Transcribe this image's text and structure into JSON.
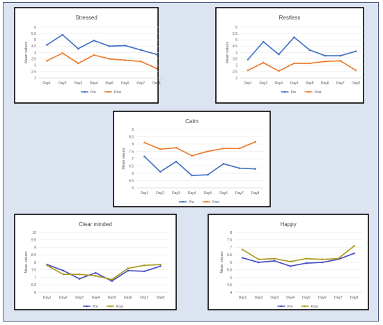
{
  "chart_data": [
    {
      "type": "line",
      "title": "Stressed",
      "xlabel": "",
      "ylabel": "Mean values",
      "categories": [
        "Day1",
        "Day2",
        "Day3",
        "Day4",
        "Day5",
        "Day6",
        "Day7",
        "Day8"
      ],
      "ylim": [
        2,
        6
      ],
      "yticks": [
        "2",
        "2.5",
        "3",
        "3.5",
        "4",
        "4.5",
        "5",
        "5.5",
        "6"
      ],
      "grid": true,
      "legend": "bottom",
      "series": [
        {
          "name": "Pre",
          "color": "#4472c4",
          "values": [
            4.6,
            5.4,
            4.3,
            4.95,
            4.5,
            4.55,
            4.2,
            3.85
          ]
        },
        {
          "name": "Post",
          "color": "#ed7d31",
          "values": [
            3.35,
            3.95,
            3.15,
            3.8,
            3.5,
            3.4,
            3.3,
            2.75
          ]
        }
      ]
    },
    {
      "type": "line",
      "title": "Restless",
      "xlabel": "",
      "ylabel": "Mean values",
      "categories": [
        "Day1",
        "Day2",
        "Day3",
        "Day4",
        "Day5",
        "Day6",
        "Day7",
        "Day8"
      ],
      "ylim": [
        2,
        6
      ],
      "yticks": [
        "2",
        "2.5",
        "3",
        "3.5",
        "4",
        "4.5",
        "5",
        "5.5",
        "6"
      ],
      "grid": true,
      "legend": "bottom",
      "series": [
        {
          "name": "Pre",
          "color": "#4472c4",
          "values": [
            3.45,
            4.85,
            3.85,
            5.2,
            4.2,
            3.75,
            3.75,
            4.1
          ]
        },
        {
          "name": "Post",
          "color": "#ed7d31",
          "values": [
            2.6,
            3.2,
            2.55,
            3.15,
            3.15,
            3.3,
            3.35,
            2.6
          ]
        }
      ]
    },
    {
      "type": "line",
      "title": "Calm",
      "xlabel": "",
      "ylabel": "Mean values",
      "categories": [
        "Day1",
        "Day2",
        "Day3",
        "Day4",
        "Day5",
        "Day6",
        "Day7",
        "Day8"
      ],
      "ylim": [
        5,
        9
      ],
      "yticks": [
        "5",
        "5.5",
        "6",
        "6.5",
        "7",
        "7.5",
        "8",
        "8.5",
        "9"
      ],
      "grid": true,
      "legend": "bottom",
      "series": [
        {
          "name": "Pre",
          "color": "#4472c4",
          "values": [
            7.15,
            6.1,
            6.8,
            5.85,
            5.9,
            6.65,
            6.35,
            6.3
          ]
        },
        {
          "name": "Post",
          "color": "#ed7d31",
          "values": [
            8.1,
            7.65,
            7.75,
            7.2,
            7.5,
            7.7,
            7.7,
            8.15
          ]
        }
      ]
    },
    {
      "type": "line",
      "title": "Clear minded",
      "xlabel": "",
      "ylabel": "Mean values",
      "categories": [
        "Day1",
        "Day2",
        "Day3",
        "Day4",
        "Day5",
        "Day6",
        "Day7",
        "Day8"
      ],
      "ylim": [
        6,
        10
      ],
      "yticks": [
        "6",
        "6.5",
        "7",
        "7.5",
        "8",
        "8.5",
        "9",
        "9.5",
        "10"
      ],
      "grid": true,
      "legend": "bottom",
      "series": [
        {
          "name": "Pre",
          "color": "#4a4fc4",
          "values": [
            7.85,
            7.45,
            6.9,
            7.3,
            6.75,
            7.45,
            7.4,
            7.75
          ]
        },
        {
          "name": "Post",
          "color": "#a89a1e",
          "values": [
            7.8,
            7.2,
            7.2,
            7.1,
            6.85,
            7.6,
            7.8,
            7.85
          ]
        }
      ]
    },
    {
      "type": "line",
      "title": "Happy",
      "xlabel": "",
      "ylabel": "Mean values",
      "categories": [
        "Day1",
        "Day2",
        "Day3",
        "Day4",
        "Day5",
        "Day6",
        "Day7",
        "Day8"
      ],
      "ylim": [
        4,
        8
      ],
      "yticks": [
        "4",
        "4.5",
        "5",
        "5.5",
        "6",
        "6.5",
        "7",
        "7.5",
        "8"
      ],
      "grid": true,
      "legend": "bottom",
      "series": [
        {
          "name": "Pre",
          "color": "#4a4fc4",
          "values": [
            6.3,
            6.0,
            6.1,
            5.75,
            5.95,
            6.0,
            6.2,
            6.6
          ]
        },
        {
          "name": "Post",
          "color": "#a89a1e",
          "values": [
            6.85,
            6.2,
            6.25,
            6.05,
            6.25,
            6.2,
            6.25,
            7.1
          ]
        }
      ]
    }
  ]
}
